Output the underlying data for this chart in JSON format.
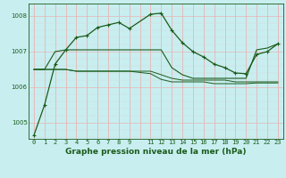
{
  "bg_color": "#c8eef0",
  "grid_major_color": "#e8b4b4",
  "grid_minor_color": "#d8d8d8",
  "line_color": "#1a5c1a",
  "title": "Graphe pression niveau de la mer (hPa)",
  "xlim": [
    -0.5,
    23.5
  ],
  "ylim": [
    1004.55,
    1008.35
  ],
  "yticks": [
    1005,
    1006,
    1007,
    1008
  ],
  "xtick_positions": [
    0,
    1,
    2,
    3,
    4,
    5,
    6,
    7,
    8,
    9,
    10,
    11,
    12,
    13,
    14,
    15,
    16,
    17,
    18,
    19,
    20,
    21,
    22,
    23
  ],
  "xtick_labels": [
    "0",
    "1",
    "2",
    "3",
    "4",
    "5",
    "6",
    "7",
    "8",
    "9",
    "",
    "11",
    "12",
    "13",
    "14",
    "15",
    "16",
    "17",
    "18",
    "19",
    "20",
    "21",
    "22",
    "23"
  ],
  "series": [
    {
      "x": [
        0,
        1,
        2,
        3,
        4,
        5,
        6,
        7,
        8,
        9,
        11,
        12,
        13,
        14,
        15,
        16,
        17,
        18,
        19,
        20,
        21,
        22,
        23
      ],
      "y": [
        1004.65,
        1005.5,
        1006.65,
        1007.05,
        1007.4,
        1007.45,
        1007.68,
        1007.75,
        1007.82,
        1007.65,
        1008.05,
        1008.08,
        1007.6,
        1007.25,
        1007.0,
        1006.85,
        1006.65,
        1006.55,
        1006.4,
        1006.38,
        1006.92,
        1007.0,
        1007.22
      ],
      "marker": "+",
      "lw": 0.9
    },
    {
      "x": [
        0,
        1,
        2,
        3,
        4,
        5,
        6,
        7,
        8,
        9,
        11,
        12,
        13,
        14,
        15,
        16,
        17,
        18,
        19,
        20,
        21,
        22,
        23
      ],
      "y": [
        1006.5,
        1006.5,
        1007.0,
        1007.05,
        1007.05,
        1007.05,
        1007.05,
        1007.05,
        1007.05,
        1007.05,
        1007.05,
        1007.05,
        1006.55,
        1006.35,
        1006.25,
        1006.25,
        1006.25,
        1006.25,
        1006.25,
        1006.25,
        1007.05,
        1007.1,
        1007.22
      ],
      "marker": null,
      "lw": 0.8
    },
    {
      "x": [
        0,
        1,
        2,
        3,
        4,
        5,
        6,
        7,
        8,
        9,
        11,
        12,
        13,
        14,
        15,
        16,
        17,
        18,
        19,
        20,
        21,
        22,
        23
      ],
      "y": [
        1006.5,
        1006.5,
        1006.5,
        1006.5,
        1006.45,
        1006.45,
        1006.45,
        1006.45,
        1006.45,
        1006.45,
        1006.45,
        1006.35,
        1006.25,
        1006.2,
        1006.2,
        1006.2,
        1006.2,
        1006.2,
        1006.15,
        1006.15,
        1006.15,
        1006.15,
        1006.15
      ],
      "marker": null,
      "lw": 0.7
    },
    {
      "x": [
        0,
        1,
        2,
        3,
        4,
        5,
        6,
        7,
        8,
        9,
        11,
        12,
        13,
        14,
        15,
        16,
        17,
        18,
        19,
        20,
        21,
        22,
        23
      ],
      "y": [
        1006.5,
        1006.5,
        1006.5,
        1006.5,
        1006.45,
        1006.45,
        1006.45,
        1006.45,
        1006.45,
        1006.45,
        1006.38,
        1006.22,
        1006.15,
        1006.15,
        1006.15,
        1006.15,
        1006.1,
        1006.1,
        1006.1,
        1006.1,
        1006.12,
        1006.12,
        1006.12
      ],
      "marker": null,
      "lw": 0.7
    }
  ],
  "title_fontsize": 6.5,
  "tick_fontsize": 5.0
}
